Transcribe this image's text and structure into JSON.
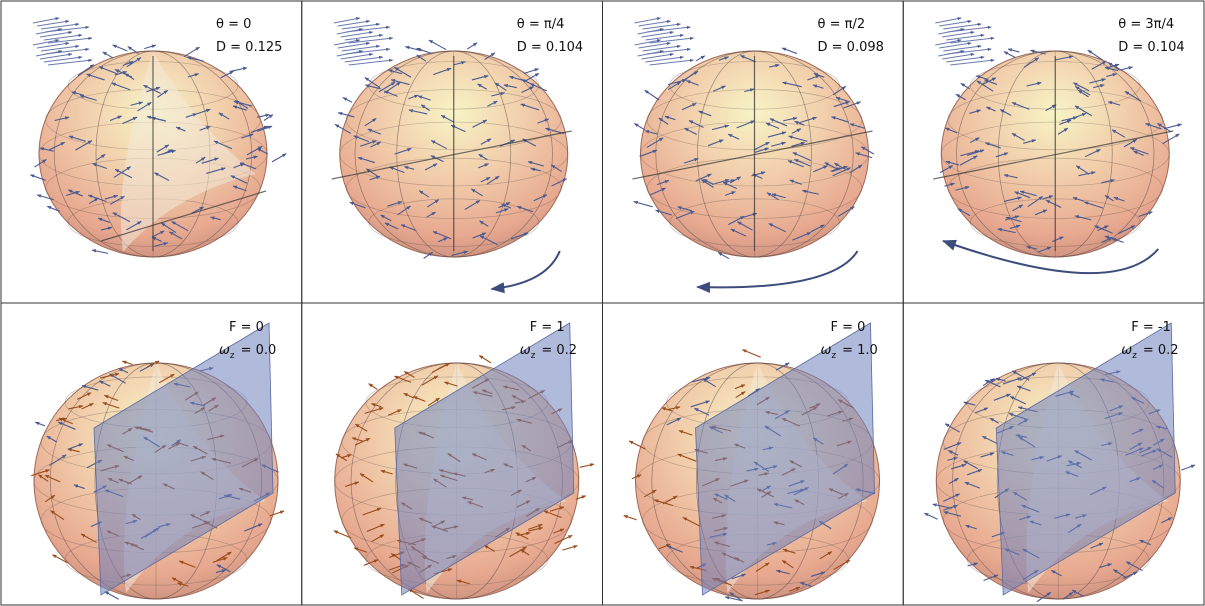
{
  "top_row": [
    {
      "theta": "θ = 0",
      "D": "D = 0.125"
    },
    {
      "theta": "θ = π/4",
      "D": "D = 0.104"
    },
    {
      "theta": "θ = π/2",
      "D": "D = 0.098"
    },
    {
      "theta": "θ = 3π/4",
      "D": "D = 0.104"
    }
  ],
  "bottom_row": [
    {
      "F": "F = 0",
      "omega": "ω",
      "omega_sub": "z",
      "omega_value": "= 0.0"
    },
    {
      "F": "F = 1",
      "omega": "ω",
      "omega_sub": "z",
      "omega_value": "= 0.2"
    },
    {
      "F": "F = 0",
      "omega": "ω",
      "omega_sub": "z",
      "omega_value": "= 1.0"
    },
    {
      "F": "F = -1",
      "omega": "ω",
      "omega_sub": "z",
      "omega_value": "= 0.2"
    }
  ]
}
